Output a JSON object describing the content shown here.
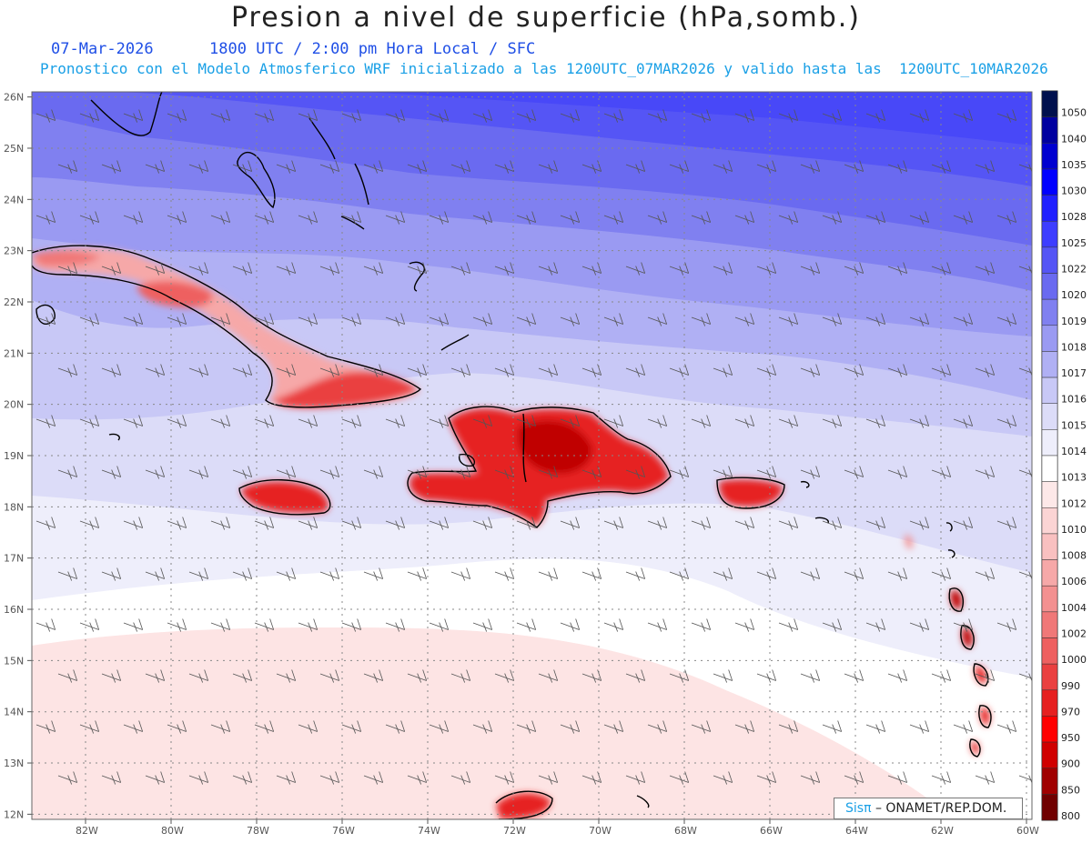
{
  "header": {
    "title": "Presion a nivel de superficie (hPa,somb.)",
    "date": "07-Mar-2026",
    "time_info": "1800 UTC / 2:00 pm Hora Local / SFC",
    "model_info": "Pronostico con el Modelo Atmosferico WRF inicializado a las 1200UTC_07MAR2026 y valido hasta las  1200UTC_10MAR2026"
  },
  "axes": {
    "lat_labels": [
      "26N",
      "25N",
      "24N",
      "23N",
      "22N",
      "21N",
      "20N",
      "19N",
      "18N",
      "17N",
      "16N",
      "15N",
      "14N",
      "13N",
      "12N"
    ],
    "lon_labels": [
      "82W",
      "80W",
      "78W",
      "76W",
      "74W",
      "72W",
      "70W",
      "68W",
      "66W",
      "64W",
      "62W",
      "60W"
    ]
  },
  "legend": {
    "levels": [
      "1050",
      "1040",
      "1035",
      "1030",
      "1028",
      "1025",
      "1022",
      "1020",
      "1019",
      "1018",
      "1017",
      "1016",
      "1015",
      "1014",
      "1013",
      "1012",
      "1010",
      "1008",
      "1006",
      "1004",
      "1002",
      "1000",
      "990",
      "970",
      "950",
      "900",
      "850",
      "800"
    ],
    "colors": [
      "#00104d",
      "#0000a0",
      "#0000d0",
      "#0000ff",
      "#2020ff",
      "#3d3dff",
      "#5555f5",
      "#6a6af0",
      "#8080f0",
      "#9a9af2",
      "#b0b0f4",
      "#c8c8f6",
      "#dcdcf8",
      "#eeeefb",
      "#ffffff",
      "#fde8e8",
      "#fbd4d4",
      "#f9c0c0",
      "#f6a8a8",
      "#f39090",
      "#f07878",
      "#ee6060",
      "#ea4040",
      "#e62020",
      "#ff0000",
      "#d00000",
      "#a00000",
      "#700000"
    ]
  },
  "credit": {
    "logo": "Sisπ",
    "text": " – ONAMET/REP.DOM."
  }
}
